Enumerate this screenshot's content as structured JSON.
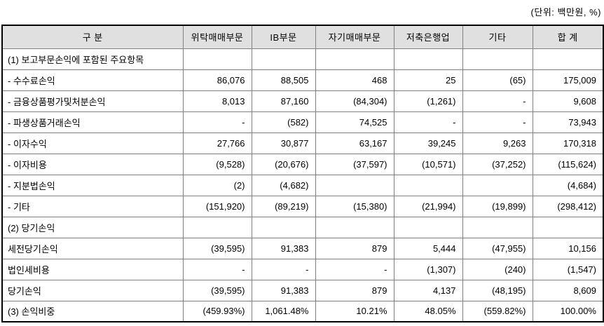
{
  "unit_label": "(단위: 백만원, %)",
  "table": {
    "columns": [
      "구 분",
      "위탁매매부문",
      "IB부문",
      "자기매매부문",
      "저축은행업",
      "기타",
      "합 계"
    ],
    "rows": [
      {
        "label": "(1) 보고부문손익에 포함된 주요항목",
        "values": [
          "",
          "",
          "",
          "",
          "",
          ""
        ]
      },
      {
        "label": "- 수수료손익",
        "values": [
          "86,076",
          "88,505",
          "468",
          "25",
          "(65)",
          "175,009"
        ]
      },
      {
        "label": "- 금융상품평가및처분손익",
        "values": [
          "8,013",
          "87,160",
          "(84,304)",
          "(1,261)",
          "-",
          "9,608"
        ]
      },
      {
        "label": "- 파생상품거래손익",
        "values": [
          "-",
          "(582)",
          "74,525",
          "-",
          "-",
          "73,943"
        ]
      },
      {
        "label": "- 이자수익",
        "values": [
          "27,766",
          "30,877",
          "63,167",
          "39,245",
          "9,263",
          "170,318"
        ]
      },
      {
        "label": "- 이자비용",
        "values": [
          "(9,528)",
          "(20,676)",
          "(37,597)",
          "(10,571)",
          "(37,252)",
          "(115,624)"
        ]
      },
      {
        "label": "- 지분법손익",
        "values": [
          "(2)",
          "(4,682)",
          "",
          "",
          "",
          "(4,684)"
        ]
      },
      {
        "label": "- 기타",
        "values": [
          "(151,920)",
          "(89,219)",
          "(15,380)",
          "(21,994)",
          "(19,899)",
          "(298,412)"
        ]
      },
      {
        "label": "(2) 당기손익",
        "values": [
          "",
          "",
          "",
          "",
          "",
          ""
        ]
      },
      {
        "label": "세전당기손익",
        "values": [
          "(39,595)",
          "91,383",
          "879",
          "5,444",
          "(47,955)",
          "10,156"
        ]
      },
      {
        "label": "법인세비용",
        "values": [
          "-",
          "-",
          "-",
          "(1,307)",
          "(240)",
          "(1,547)"
        ]
      },
      {
        "label": "당기손익",
        "values": [
          "(39,595)",
          "91,383",
          "879",
          "4,137",
          "(48,195)",
          "8,609"
        ]
      },
      {
        "label": "(3) 손익비중",
        "values": [
          "(459.93%)",
          "1,061.48%",
          "10.21%",
          "48.05%",
          "(559.82%)",
          "100.00%"
        ]
      }
    ]
  },
  "colors": {
    "header_bg": "#e0e0e0",
    "grid_line": "#808080",
    "outer_border": "#000000",
    "text": "#000000"
  }
}
